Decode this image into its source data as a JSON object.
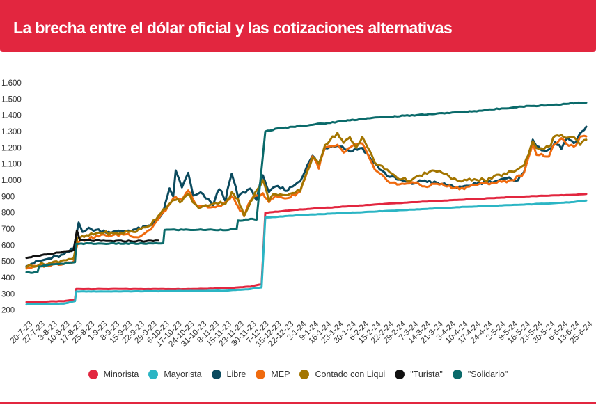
{
  "header": {
    "title": "La brecha entre el dólar oficial y las cotizaciones alternativas"
  },
  "colors": {
    "minorista": "#e2263f",
    "mayorista": "#2bb5c4",
    "libre": "#0b4a5e",
    "mep": "#ef6a0e",
    "ccl": "#a37500",
    "turista": "#111111",
    "solidario": "#0a6a6a",
    "header_bg": "#e2263f"
  },
  "chart_data": {
    "type": "line",
    "ylim": [
      160,
      1660
    ],
    "yticks": [
      "200",
      "300",
      "400",
      "500",
      "600",
      "700",
      "800",
      "900",
      "1.000",
      "1.100",
      "1.200",
      "1.300",
      "1.400",
      "1.500",
      "1.600"
    ],
    "ytick_values": [
      200,
      300,
      400,
      500,
      600,
      700,
      800,
      900,
      1000,
      1100,
      1200,
      1300,
      1400,
      1500,
      1600
    ],
    "x_labels": [
      "20-7-23",
      "27-7-23",
      "3-8-23",
      "10-8-23",
      "17-8-23",
      "25-8-23",
      "1-9-23",
      "8-9-23",
      "15-9-23",
      "22-9-23",
      "29-9-23",
      "6-10-23",
      "17-10-23",
      "24-10-23",
      "31-10-23",
      "8-11-23",
      "15-11-23",
      "23-11-23",
      "30-11-23",
      "7-12-23",
      "15-12-23",
      "22-12-23",
      "2-1-24",
      "9-1-24",
      "16-1-24",
      "23-1-24",
      "30-1-24",
      "6-2-24",
      "15-2-24",
      "22-2-24",
      "29-2-24",
      "7-3-24",
      "14-3-24",
      "21-3-24",
      "3-4-24",
      "10-4-24",
      "17-4-24",
      "24-4-24",
      "2-5-24",
      "9-5-24",
      "16-5-24",
      "23-5-24",
      "30-5-24",
      "6-6-24",
      "13-6-24",
      "25-6-24"
    ],
    "series": [
      {
        "name": "Minorista",
        "key": "minorista",
        "points": [
          [
            0,
            250
          ],
          [
            3,
            255
          ],
          [
            3.9,
            265
          ],
          [
            4,
            330
          ],
          [
            7,
            330
          ],
          [
            13,
            330
          ],
          [
            16,
            335
          ],
          [
            18,
            345
          ],
          [
            18.9,
            360
          ],
          [
            19.2,
            800
          ],
          [
            22,
            820
          ],
          [
            26,
            840
          ],
          [
            30,
            860
          ],
          [
            35,
            880
          ],
          [
            40,
            900
          ],
          [
            44,
            910
          ],
          [
            45,
            915
          ]
        ]
      },
      {
        "name": "Mayorista",
        "key": "mayorista",
        "points": [
          [
            0,
            235
          ],
          [
            3,
            240
          ],
          [
            3.9,
            255
          ],
          [
            4,
            315
          ],
          [
            7,
            315
          ],
          [
            13,
            318
          ],
          [
            16,
            320
          ],
          [
            18,
            330
          ],
          [
            18.9,
            340
          ],
          [
            19.2,
            770
          ],
          [
            22,
            785
          ],
          [
            26,
            800
          ],
          [
            30,
            815
          ],
          [
            35,
            835
          ],
          [
            40,
            850
          ],
          [
            44,
            865
          ],
          [
            45,
            875
          ]
        ]
      },
      {
        "name": "Libre",
        "key": "libre",
        "points": [
          [
            0,
            480
          ],
          [
            1,
            500
          ],
          [
            2,
            520
          ],
          [
            3,
            540
          ],
          [
            3.8,
            580
          ],
          [
            4.2,
            740
          ],
          [
            4.5,
            690
          ],
          [
            5,
            700
          ],
          [
            6,
            690
          ],
          [
            7,
            680
          ],
          [
            8,
            690
          ],
          [
            9,
            700
          ],
          [
            10,
            720
          ],
          [
            11,
            800
          ],
          [
            11.5,
            950
          ],
          [
            11.8,
            900
          ],
          [
            12,
            1060
          ],
          [
            12.3,
            1000
          ],
          [
            12.5,
            950
          ],
          [
            13,
            1050
          ],
          [
            13.4,
            900
          ],
          [
            14,
            920
          ],
          [
            15,
            850
          ],
          [
            15.5,
            950
          ],
          [
            16,
            880
          ],
          [
            16.5,
            1040
          ],
          [
            17,
            900
          ],
          [
            18,
            950
          ],
          [
            18.5,
            880
          ],
          [
            19,
            1040
          ],
          [
            19.5,
            920
          ],
          [
            20,
            960
          ],
          [
            21,
            940
          ],
          [
            22,
            1000
          ],
          [
            23,
            1150
          ],
          [
            23.5,
            1100
          ],
          [
            24,
            1200
          ],
          [
            25,
            1220
          ],
          [
            26,
            1180
          ],
          [
            27,
            1200
          ],
          [
            28,
            1100
          ],
          [
            29,
            1030
          ],
          [
            30,
            1000
          ],
          [
            31,
            980
          ],
          [
            32,
            1000
          ],
          [
            33,
            980
          ],
          [
            34,
            970
          ],
          [
            35,
            950
          ],
          [
            36,
            980
          ],
          [
            37,
            990
          ],
          [
            38,
            1000
          ],
          [
            39,
            1010
          ],
          [
            39.5,
            1000
          ],
          [
            40,
            1050
          ],
          [
            40.7,
            1250
          ],
          [
            41,
            1200
          ],
          [
            42,
            1180
          ],
          [
            42.5,
            1230
          ],
          [
            43,
            1200
          ],
          [
            43.5,
            1260
          ],
          [
            44,
            1220
          ],
          [
            44.5,
            1280
          ],
          [
            45,
            1330
          ]
        ]
      },
      {
        "name": "MEP",
        "key": "mep",
        "points": [
          [
            0,
            460
          ],
          [
            1,
            470
          ],
          [
            2,
            480
          ],
          [
            3,
            490
          ],
          [
            3.8,
            500
          ],
          [
            4.1,
            620
          ],
          [
            5,
            640
          ],
          [
            6,
            660
          ],
          [
            7,
            660
          ],
          [
            8,
            670
          ],
          [
            9,
            650
          ],
          [
            10,
            700
          ],
          [
            11,
            800
          ],
          [
            12,
            900
          ],
          [
            12.5,
            870
          ],
          [
            13,
            940
          ],
          [
            13.5,
            860
          ],
          [
            14,
            840
          ],
          [
            15,
            830
          ],
          [
            16,
            860
          ],
          [
            16.5,
            900
          ],
          [
            17,
            840
          ],
          [
            17.5,
            780
          ],
          [
            18,
            880
          ],
          [
            19,
            920
          ],
          [
            19.5,
            870
          ],
          [
            20,
            900
          ],
          [
            21,
            890
          ],
          [
            22,
            930
          ],
          [
            23,
            1150
          ],
          [
            23.5,
            1080
          ],
          [
            24,
            1200
          ],
          [
            25,
            1210
          ],
          [
            25.5,
            1170
          ],
          [
            26,
            1200
          ],
          [
            27,
            1230
          ],
          [
            28,
            1060
          ],
          [
            29,
            1000
          ],
          [
            30,
            970
          ],
          [
            31,
            990
          ],
          [
            32,
            960
          ],
          [
            33,
            980
          ],
          [
            34,
            960
          ],
          [
            35,
            950
          ],
          [
            36,
            970
          ],
          [
            37,
            980
          ],
          [
            38,
            990
          ],
          [
            39,
            1000
          ],
          [
            40,
            1040
          ],
          [
            40.7,
            1230
          ],
          [
            41,
            1160
          ],
          [
            42,
            1150
          ],
          [
            42.5,
            1230
          ],
          [
            43,
            1250
          ],
          [
            44,
            1200
          ],
          [
            44.5,
            1260
          ],
          [
            45,
            1270
          ]
        ]
      },
      {
        "name": "Contado con Liqui",
        "key": "ccl",
        "points": [
          [
            0,
            470
          ],
          [
            1,
            480
          ],
          [
            2,
            490
          ],
          [
            3,
            510
          ],
          [
            3.8,
            520
          ],
          [
            4.1,
            640
          ],
          [
            5,
            660
          ],
          [
            6,
            680
          ],
          [
            7,
            670
          ],
          [
            8,
            680
          ],
          [
            9,
            690
          ],
          [
            10,
            730
          ],
          [
            11,
            820
          ],
          [
            12,
            880
          ],
          [
            12.5,
            870
          ],
          [
            13,
            920
          ],
          [
            13.5,
            850
          ],
          [
            14,
            830
          ],
          [
            15,
            860
          ],
          [
            16,
            860
          ],
          [
            16.5,
            920
          ],
          [
            17,
            880
          ],
          [
            17.5,
            780
          ],
          [
            18,
            870
          ],
          [
            19,
            1000
          ],
          [
            19.5,
            880
          ],
          [
            20,
            920
          ],
          [
            21,
            900
          ],
          [
            22,
            940
          ],
          [
            23,
            1140
          ],
          [
            23.5,
            1100
          ],
          [
            24,
            1220
          ],
          [
            25,
            1290
          ],
          [
            25.5,
            1230
          ],
          [
            26,
            1260
          ],
          [
            26.5,
            1200
          ],
          [
            27,
            1270
          ],
          [
            28,
            1110
          ],
          [
            29,
            1060
          ],
          [
            30,
            1010
          ],
          [
            31,
            1000
          ],
          [
            32,
            1040
          ],
          [
            33,
            1060
          ],
          [
            34,
            1020
          ],
          [
            35,
            990
          ],
          [
            36,
            1010
          ],
          [
            37,
            1000
          ],
          [
            38,
            1030
          ],
          [
            39,
            1050
          ],
          [
            40,
            1090
          ],
          [
            40.7,
            1240
          ],
          [
            41,
            1200
          ],
          [
            42,
            1200
          ],
          [
            42.5,
            1280
          ],
          [
            43,
            1270
          ],
          [
            44,
            1260
          ],
          [
            44.5,
            1220
          ],
          [
            45,
            1250
          ]
        ]
      },
      {
        "name": "\"Turista\"",
        "key": "turista",
        "points": [
          [
            0,
            525
          ],
          [
            1,
            535
          ],
          [
            2,
            545
          ],
          [
            3,
            560
          ],
          [
            3.8,
            570
          ],
          [
            4.05,
            690
          ],
          [
            4.3,
            630
          ],
          [
            5,
            630
          ],
          [
            6,
            625
          ],
          [
            7,
            625
          ],
          [
            8,
            625
          ],
          [
            9,
            625
          ],
          [
            10,
            625
          ],
          [
            10.6,
            628
          ]
        ]
      },
      {
        "name": "\"Solidario\"",
        "key": "solidario",
        "points": [
          [
            0,
            430
          ],
          [
            0.9,
            435
          ],
          [
            1,
            470
          ],
          [
            2,
            480
          ],
          [
            3,
            485
          ],
          [
            3.9,
            495
          ],
          [
            4,
            610
          ],
          [
            8,
            610
          ],
          [
            10,
            610
          ],
          [
            11,
            612
          ],
          [
            11.1,
            695
          ],
          [
            13,
            695
          ],
          [
            16,
            695
          ],
          [
            16.9,
            698
          ],
          [
            17,
            750
          ],
          [
            18,
            760
          ],
          [
            18.5,
            760
          ],
          [
            19.2,
            1300
          ],
          [
            20,
            1315
          ],
          [
            22,
            1335
          ],
          [
            24,
            1350
          ],
          [
            26,
            1370
          ],
          [
            28,
            1385
          ],
          [
            30,
            1395
          ],
          [
            32,
            1405
          ],
          [
            34,
            1415
          ],
          [
            36,
            1425
          ],
          [
            38,
            1440
          ],
          [
            40,
            1455
          ],
          [
            42,
            1462
          ],
          [
            44,
            1475
          ],
          [
            45,
            1478
          ]
        ]
      }
    ]
  }
}
